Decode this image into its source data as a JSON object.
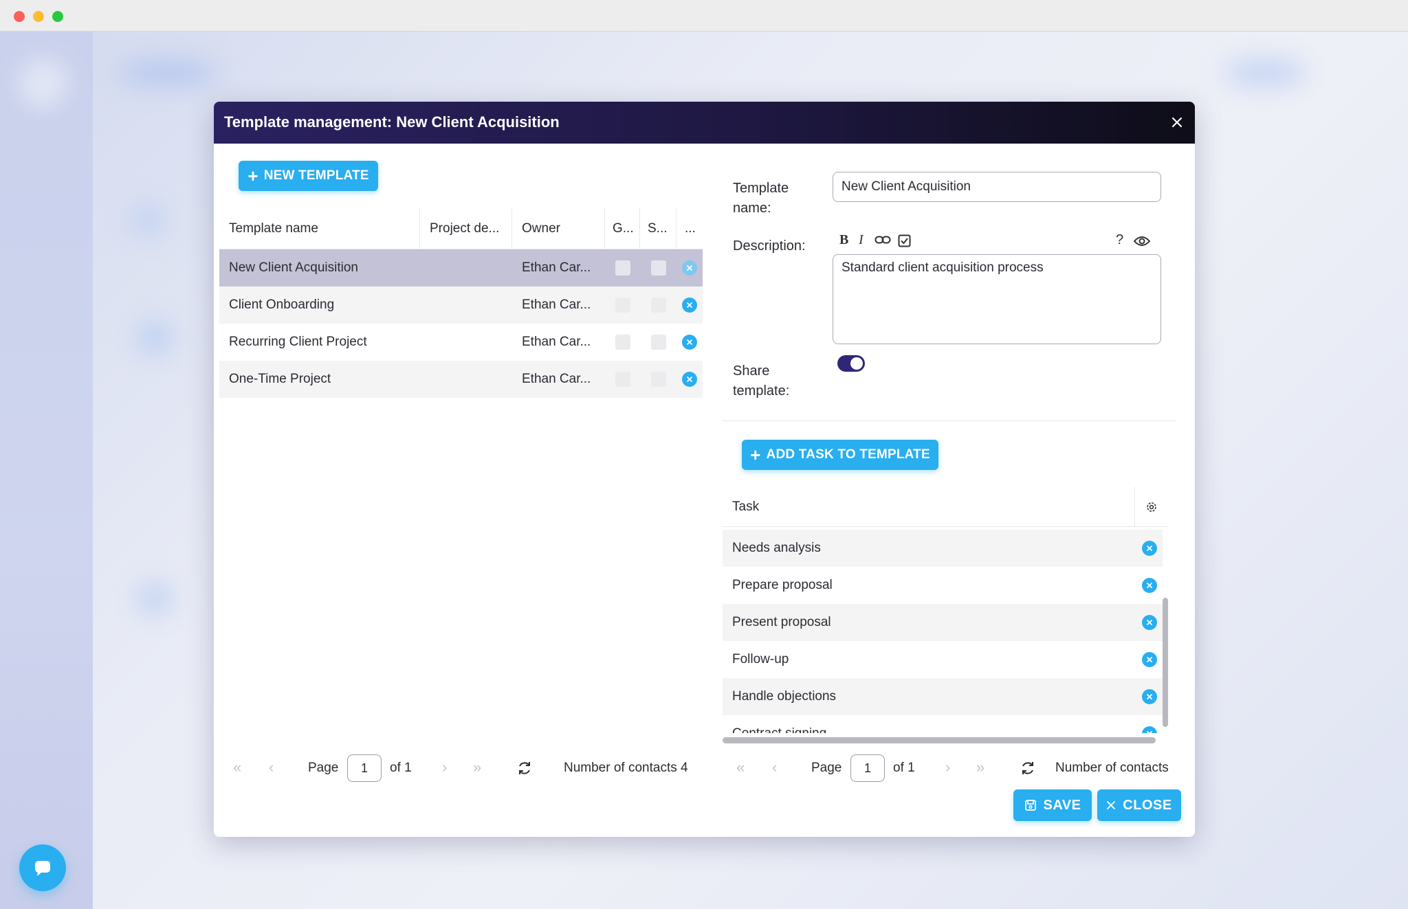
{
  "dialog": {
    "title": "Template management: New Client Acquisition",
    "new_template_label": "NEW TEMPLATE",
    "templates": {
      "columns": [
        "Template name",
        "Project de...",
        "Owner",
        "G...",
        "S...",
        "..."
      ],
      "rows": [
        {
          "name": "New Client Acquisition",
          "project": "",
          "owner": "Ethan Car..."
        },
        {
          "name": "Client Onboarding",
          "project": "",
          "owner": "Ethan Car..."
        },
        {
          "name": "Recurring Client Project",
          "project": "",
          "owner": "Ethan Car..."
        },
        {
          "name": "One-Time Project",
          "project": "",
          "owner": "Ethan Car..."
        }
      ],
      "pager": {
        "page_label": "Page",
        "page": "1",
        "of_label": "of 1",
        "count_label": "Number of contacts 4"
      }
    },
    "form": {
      "name_label": "Template name:",
      "name_value": "New Client Acquisition",
      "description_label": "Description:",
      "description_value": "Standard client acquisition process",
      "share_label": "Share template:",
      "share_on": true
    },
    "tasks": {
      "add_label": "ADD TASK TO TEMPLATE",
      "column": "Task",
      "rows": [
        "Needs analysis",
        "Prepare proposal",
        "Present proposal",
        "Follow-up",
        "Handle objections",
        "Contract signing"
      ],
      "pager": {
        "page_label": "Page",
        "page": "1",
        "of_label": "of 1",
        "count_label": "Number of contacts"
      }
    },
    "save_label": "SAVE",
    "close_label": "CLOSE"
  },
  "colors": {
    "accent": "#29aef0",
    "header_dark": "#1e1842",
    "selected_row": "#c4c2d6",
    "toggle": "#2e2775"
  }
}
